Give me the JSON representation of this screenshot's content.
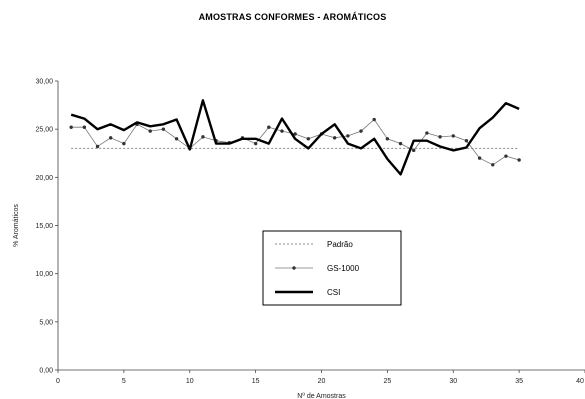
{
  "chart_data": {
    "type": "line",
    "title": "AMOSTRAS CONFORMES - AROMÁTICOS",
    "xlabel": "Nº de Amostras",
    "ylabel": "% Aromáticos",
    "xlim": [
      0,
      40
    ],
    "ylim": [
      0,
      30
    ],
    "x_ticks": [
      "0",
      "5",
      "10",
      "15",
      "20",
      "25",
      "30",
      "35",
      "40"
    ],
    "y_ticks": [
      "0,00",
      "5,00",
      "10,00",
      "15,00",
      "20,00",
      "25,00",
      "30,00"
    ],
    "grid": false,
    "legend_position": "center",
    "series": [
      {
        "name": "Padrão",
        "style": "dotted",
        "color": "#888888",
        "x": [
          1,
          35
        ],
        "values": [
          23.0,
          23.0
        ]
      },
      {
        "name": "GS-1000",
        "style": "solid-marker",
        "color": "#333333",
        "x": [
          1,
          2,
          3,
          4,
          5,
          6,
          7,
          8,
          9,
          10,
          11,
          12,
          13,
          14,
          15,
          16,
          17,
          18,
          19,
          20,
          21,
          22,
          23,
          24,
          25,
          26,
          27,
          28,
          29,
          30,
          31,
          32,
          33,
          34,
          35
        ],
        "values": [
          25.2,
          25.2,
          23.2,
          24.1,
          23.5,
          25.5,
          24.8,
          25.0,
          24.0,
          23.0,
          24.2,
          23.8,
          23.6,
          24.1,
          23.5,
          25.2,
          24.8,
          24.5,
          24.0,
          24.5,
          24.1,
          24.3,
          24.8,
          26.0,
          24.0,
          23.5,
          22.8,
          24.6,
          24.2,
          24.3,
          23.8,
          22.0,
          21.3,
          22.2,
          21.8
        ]
      },
      {
        "name": "CSI",
        "style": "bold",
        "color": "#000000",
        "x": [
          1,
          2,
          3,
          4,
          5,
          6,
          7,
          8,
          9,
          10,
          11,
          12,
          13,
          14,
          15,
          16,
          17,
          18,
          19,
          20,
          21,
          22,
          23,
          24,
          25,
          26,
          27,
          28,
          29,
          30,
          31,
          32,
          33,
          34,
          35
        ],
        "values": [
          26.5,
          26.1,
          25.0,
          25.5,
          24.9,
          25.7,
          25.3,
          25.5,
          26.0,
          22.9,
          28.0,
          23.5,
          23.5,
          24.0,
          24.0,
          23.5,
          26.1,
          24.0,
          23.0,
          24.5,
          25.5,
          23.5,
          23.0,
          24.0,
          21.9,
          20.3,
          23.8,
          23.8,
          23.2,
          22.8,
          23.1,
          25.1,
          26.2,
          27.7,
          27.1
        ]
      }
    ]
  }
}
